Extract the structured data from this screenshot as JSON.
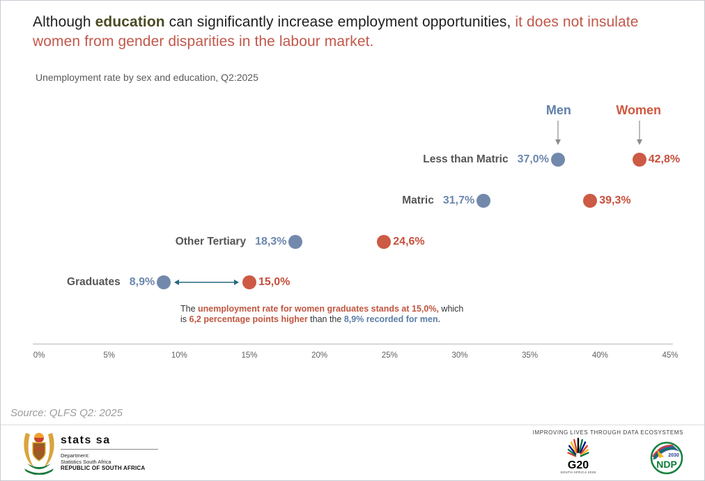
{
  "title": {
    "p1": "Although ",
    "edu": "education",
    "p2": " can significantly increase employment opportunities, ",
    "p3": "it does not insulate women from gender disparities in the labour market."
  },
  "subtitle": "Unemployment rate by sex and education, Q2:2025",
  "legend": {
    "men": "Men",
    "women": "Women"
  },
  "chart_data": {
    "type": "scatter",
    "title": "Unemployment rate by sex and education, Q2:2025",
    "categories": [
      "Less than Matric",
      "Matric",
      "Other Tertiary",
      "Graduates"
    ],
    "series": [
      {
        "name": "Men",
        "color": "#7389ac",
        "text_color": "#6c87ae",
        "values": [
          37.0,
          31.7,
          18.3,
          8.9
        ],
        "labels": [
          "37,0%",
          "31,7%",
          "18,3%",
          "8,9%"
        ]
      },
      {
        "name": "Women",
        "color": "#cc5a45",
        "text_color": "#c6503d",
        "values": [
          42.8,
          39.3,
          24.6,
          15.0
        ],
        "labels": [
          "42,8%",
          "39,3%",
          "24,6%",
          "15,0%"
        ]
      }
    ],
    "xlim": [
      0,
      45
    ],
    "x_ticks": [
      "0%",
      "5%",
      "10%",
      "15%",
      "20%",
      "25%",
      "30%",
      "35%",
      "40%",
      "45%"
    ],
    "xlabel": "",
    "ylabel": "",
    "grid": false,
    "legend_position": "top-right",
    "arrow_color": "#26687d",
    "gap_arrow_row": "Graduates"
  },
  "annotation": {
    "a1": "The ",
    "a2": "unemployment rate for women graduates stands at 15,0%,",
    "a3": " which is ",
    "a4": "6,2 percentage points higher",
    "a5": " than the ",
    "a6": "8,9% recorded for men."
  },
  "source": "Source: QLFS Q2: 2025",
  "footer": {
    "statssa": {
      "brand": "stats sa",
      "dept_line1": "Department:",
      "dept_line2": "Statistics South Africa",
      "dept_line3": "REPUBLIC OF SOUTH AFRICA"
    },
    "tagline": "IMPROVING LIVES THROUGH DATA ECOSYSTEMS",
    "g20": {
      "label": "G20",
      "sub": "SOUTH AFRICA 2025"
    },
    "ndp": {
      "label": "NDP",
      "year": "2030"
    }
  },
  "colors": {
    "men_dot": "#7389ac",
    "women_dot": "#cc5a45",
    "men_text": "#6c87ae",
    "women_text": "#c6503d",
    "title_red": "#c2574a",
    "education_olive": "#4b4a22",
    "gap_arrow": "#26687d",
    "category_label": "#555555"
  }
}
